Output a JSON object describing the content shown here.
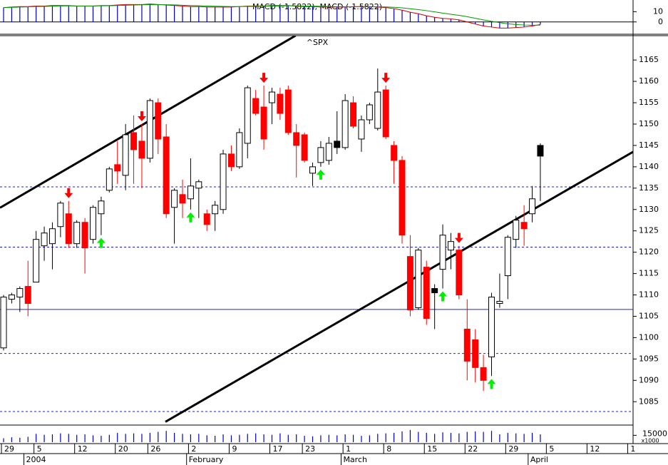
{
  "chart_data": {
    "type": "candlestick",
    "title": "^SPX",
    "categories": [
      "29",
      null,
      null,
      null,
      "5",
      null,
      null,
      null,
      null,
      "12",
      null,
      null,
      null,
      null,
      "20",
      null,
      null,
      null,
      "26",
      null,
      null,
      null,
      null,
      "2",
      null,
      null,
      null,
      null,
      "9",
      null,
      null,
      null,
      null,
      "17",
      null,
      null,
      null,
      "23",
      null,
      null,
      null,
      null,
      "1",
      null,
      null,
      null,
      null,
      "8",
      null,
      null,
      null,
      null,
      "15",
      null,
      null,
      null,
      null,
      "22",
      null,
      null,
      null,
      null,
      "29",
      null,
      null,
      null,
      null,
      "5",
      null,
      null,
      null,
      null,
      "12",
      null,
      null,
      null,
      null,
      "1"
    ],
    "months": [
      {
        "label": "2004",
        "index": 3
      },
      {
        "label": "February",
        "index": 23
      },
      {
        "label": "March",
        "index": 42
      },
      {
        "label": "April",
        "index": 65
      }
    ],
    "open": [
      1097.6,
      1109,
      1109.5,
      1112,
      1113,
      1121.5,
      1122,
      1126,
      1129,
      1122,
      1127,
      1123,
      1129,
      1134.5,
      1140.5,
      1138,
      1148,
      1146,
      1142,
      1155,
      1147,
      1130.5,
      1133.5,
      1132.5,
      1135,
      1129,
      1129,
      1130,
      1143,
      1140,
      1145.5,
      1156,
      1154,
      1155,
      1157,
      1158,
      1148,
      1147.5,
      1138.5,
      1141,
      1141.5,
      1146,
      1144.5,
      1155,
      1146.5,
      1151,
      1149,
      1158,
      1145,
      1141.5,
      1119,
      1107,
      1116.5,
      1111.5,
      1116,
      1120.5,
      1120.5,
      1102,
      1099.5,
      1093,
      1095.5,
      1108,
      1114.5,
      1123,
      1127,
      1129,
      1145,
      null,
      null,
      null,
      null,
      null,
      null,
      null,
      null,
      null,
      null,
      null
    ],
    "high": [
      1110,
      1110.5,
      1112,
      1118,
      1125,
      1126,
      1127,
      1132,
      1132,
      1127.5,
      1128,
      1131,
      1133,
      1140,
      1146,
      1150,
      1152,
      1150,
      1156,
      1156,
      1150,
      1135,
      1137,
      1142,
      1137,
      1130,
      1132,
      1144,
      1145,
      1149,
      1159,
      1158,
      1159,
      1158.5,
      1158.5,
      1159,
      1150,
      1148,
      1141,
      1146,
      1147,
      1153,
      1157,
      1156.5,
      1152,
      1155,
      1163,
      1159,
      1146,
      1142.5,
      1124,
      1121,
      1118,
      1112.5,
      1126.5,
      1124.5,
      1121.5,
      1109,
      1102,
      1096,
      1110.5,
      1115,
      1124,
      1128.5,
      1131,
      1135.5,
      1145.5,
      null,
      null,
      null,
      null,
      null,
      null,
      null,
      null,
      null,
      null,
      null
    ],
    "low": [
      1097,
      1108,
      1106,
      1105,
      1113,
      1118,
      1116,
      1123.5,
      1121,
      1121,
      1115,
      1122,
      1124,
      1134,
      1136,
      1134.5,
      1136,
      1135,
      1141,
      1143,
      1128,
      1122,
      1128,
      1130,
      1128,
      1125,
      1125,
      1129,
      1139,
      1139.5,
      1142,
      1152,
      1144,
      1150,
      1151,
      1147.5,
      1137.5,
      1141,
      1135.5,
      1140,
      1140.5,
      1143,
      1144,
      1149,
      1143.5,
      1150,
      1148.5,
      1146.5,
      1136,
      1122,
      1105,
      1106.5,
      1103,
      1102,
      1111.5,
      1116,
      1109,
      1090,
      1089.5,
      1087.5,
      1091,
      1107,
      1109,
      1121,
      1121.5,
      1127,
      1132,
      null,
      null,
      null,
      null,
      null,
      null,
      null,
      null,
      null,
      null,
      null
    ],
    "close": [
      1109.5,
      1110,
      1111.5,
      1108,
      1123,
      1124.5,
      1125.5,
      1131.5,
      1122,
      1127,
      1121,
      1130.5,
      1132,
      1139.5,
      1139,
      1147.5,
      1144,
      1142,
      1155.5,
      1146.5,
      1129,
      1134.5,
      1131.5,
      1135.5,
      1136.5,
      1126.5,
      1131,
      1143,
      1140,
      1148,
      1158.5,
      1152.5,
      1146.5,
      1157.5,
      1152.5,
      1148,
      1145,
      1141.5,
      1140,
      1144.5,
      1145.5,
      1144.5,
      1155.5,
      1149.5,
      1151,
      1154.5,
      1157.5,
      1147,
      1141.5,
      1124,
      1106.5,
      1120.5,
      1104.5,
      1110.5,
      1124,
      1122.5,
      1110,
      1094.5,
      1093,
      1090,
      1109.5,
      1108.5,
      1123.5,
      1127.5,
      1125.5,
      1132.5,
      1142.5,
      null,
      null,
      null,
      null,
      null,
      null,
      null,
      null,
      null,
      null,
      null
    ],
    "candle_colors": [
      "#ffffff",
      "#ffffff",
      "#ffffff",
      "#ff0000",
      "#ffffff",
      "#ffffff",
      "#ffffff",
      "#ffffff",
      "#ff0000",
      "#ffffff",
      "#ff0000",
      "#ffffff",
      "#ffffff",
      "#ffffff",
      "#ff0000",
      "#ffffff",
      "#ff0000",
      "#ff0000",
      "#ffffff",
      "#ff0000",
      "#ff0000",
      "#ffffff",
      "#ff0000",
      "#ffffff",
      "#ffffff",
      "#ff0000",
      "#ffffff",
      "#ffffff",
      "#ff0000",
      "#ffffff",
      "#ffffff",
      "#ff0000",
      "#ff0000",
      "#ffffff",
      "#ff0000",
      "#ff0000",
      "#ff0000",
      "#ff0000",
      "#ffffff",
      "#ffffff",
      "#ffffff",
      "#000000",
      "#ffffff",
      "#ff0000",
      "#ffffff",
      "#ffffff",
      "#ffffff",
      "#ff0000",
      "#ff0000",
      "#ff0000",
      "#ff0000",
      "#ffffff",
      "#ff0000",
      "#000000",
      "#ffffff",
      "#ffffff",
      "#ff0000",
      "#ff0000",
      "#ff0000",
      "#ff0000",
      "#ffffff",
      "#ffffff",
      "#ffffff",
      "#ffffff",
      "#ff0000",
      "#ffffff",
      "#000000",
      null,
      null,
      null,
      null,
      null,
      null,
      null,
      null,
      null,
      null,
      null
    ],
    "sell_signals": [
      8,
      17,
      32,
      47,
      56
    ],
    "buy_signals": [
      12,
      23,
      39,
      54,
      60
    ],
    "sell_color": "#ff0000",
    "buy_color": "#00ee00",
    "levels": [
      {
        "value": 1135.3,
        "dashed": true
      },
      {
        "value": 1121.2,
        "dashed": true
      },
      {
        "value": 1106.6,
        "dashed": false
      },
      {
        "value": 1096.3,
        "dashed": true
      },
      {
        "value": 1082.7,
        "dashed": true
      }
    ],
    "level_color": "#2020d0",
    "trendlines": [
      {
        "x": [
          -0.44,
          35.9
        ],
        "y": [
          1130.4,
          1170.7
        ]
      },
      {
        "x": [
          19.9,
          77.4
        ],
        "y": [
          1080.3,
          1143.5
        ]
      }
    ],
    "xlim": [
      -0.44,
      77.4
    ],
    "ylim": [
      1079.7,
      1170.7
    ],
    "yticks": [
      1085,
      1090,
      1095,
      1100,
      1105,
      1110,
      1115,
      1120,
      1125,
      1130,
      1135,
      1140,
      1145,
      1150,
      1155,
      1160,
      1165
    ],
    "macd_panel": {
      "title": "MACD (-1.5822), MACD (-1.5822)",
      "ylim": [
        -12,
        20
      ],
      "yticks": [
        0,
        10
      ],
      "bar_color": "#0000cc",
      "series": [
        {
          "color": "#cc0000",
          "values": [
            14,
            14.5,
            15,
            15,
            15.5,
            15.5,
            16,
            16,
            16,
            15.5,
            15.5,
            15.5,
            16,
            16,
            16.5,
            17,
            17,
            17,
            17.5,
            17,
            16.5,
            16,
            15.5,
            15,
            15,
            14.5,
            14.5,
            14.5,
            14.5,
            15,
            15.5,
            15.5,
            15.5,
            16,
            16,
            16,
            15.5,
            15,
            15,
            14.5,
            14.5,
            14.5,
            14.5,
            15,
            15,
            15,
            14.5,
            14,
            13,
            11.5,
            9.5,
            8,
            6,
            4.5,
            3.5,
            3,
            2,
            0,
            -2,
            -4,
            -5,
            -6,
            -6,
            -5.5,
            -5,
            -4,
            -2.5,
            null,
            null,
            null,
            null,
            null,
            null,
            null,
            null,
            null,
            null,
            null
          ]
        },
        {
          "color": "#009900",
          "values": [
            14,
            14.2,
            14.5,
            14.7,
            15,
            15.1,
            15.4,
            15.6,
            15.7,
            15.6,
            15.6,
            15.6,
            15.7,
            15.8,
            16,
            16.3,
            16.5,
            16.7,
            16.9,
            16.9,
            16.8,
            16.6,
            16.3,
            16,
            15.8,
            15.5,
            15.3,
            15.1,
            15,
            15,
            15.1,
            15.2,
            15.3,
            15.5,
            15.6,
            15.7,
            15.7,
            15.5,
            15.4,
            15.2,
            15,
            14.9,
            14.8,
            14.8,
            14.9,
            14.9,
            14.8,
            14.6,
            14.3,
            13.7,
            12.9,
            12,
            11,
            9.8,
            8.6,
            7.5,
            6.4,
            5.1,
            3.6,
            2,
            0.6,
            -0.7,
            -1.8,
            -2.5,
            -3,
            -3.2,
            -3.1,
            null,
            null,
            null,
            null,
            null,
            null,
            null,
            null,
            null,
            null,
            null
          ]
        }
      ]
    },
    "volume_panel": {
      "unit": "x1000",
      "ylim": [
        8000,
        24000
      ],
      "yticks": [
        15000
      ],
      "color": "#0000cc",
      "values": [
        12000,
        13000,
        12500,
        13500,
        16500,
        15500,
        16000,
        17000,
        16500,
        15500,
        16000,
        15000,
        14500,
        15500,
        17500,
        16500,
        17000,
        16500,
        17500,
        18500,
        19500,
        17500,
        16500,
        16000,
        16500,
        15000,
        14500,
        16000,
        15000,
        15500,
        16500,
        17000,
        16000,
        15500,
        17000,
        15500,
        16000,
        14500,
        14000,
        15000,
        15500,
        15000,
        16000,
        15500,
        14500,
        15000,
        16500,
        17000,
        17500,
        19000,
        20500,
        18500,
        17500,
        16500,
        18000,
        17500,
        17000,
        18500,
        19000,
        18500,
        19500,
        16000,
        17500,
        17000,
        16500,
        17500,
        16000,
        null,
        null,
        null,
        null,
        null,
        null,
        null,
        null,
        null,
        null,
        null
      ]
    }
  }
}
